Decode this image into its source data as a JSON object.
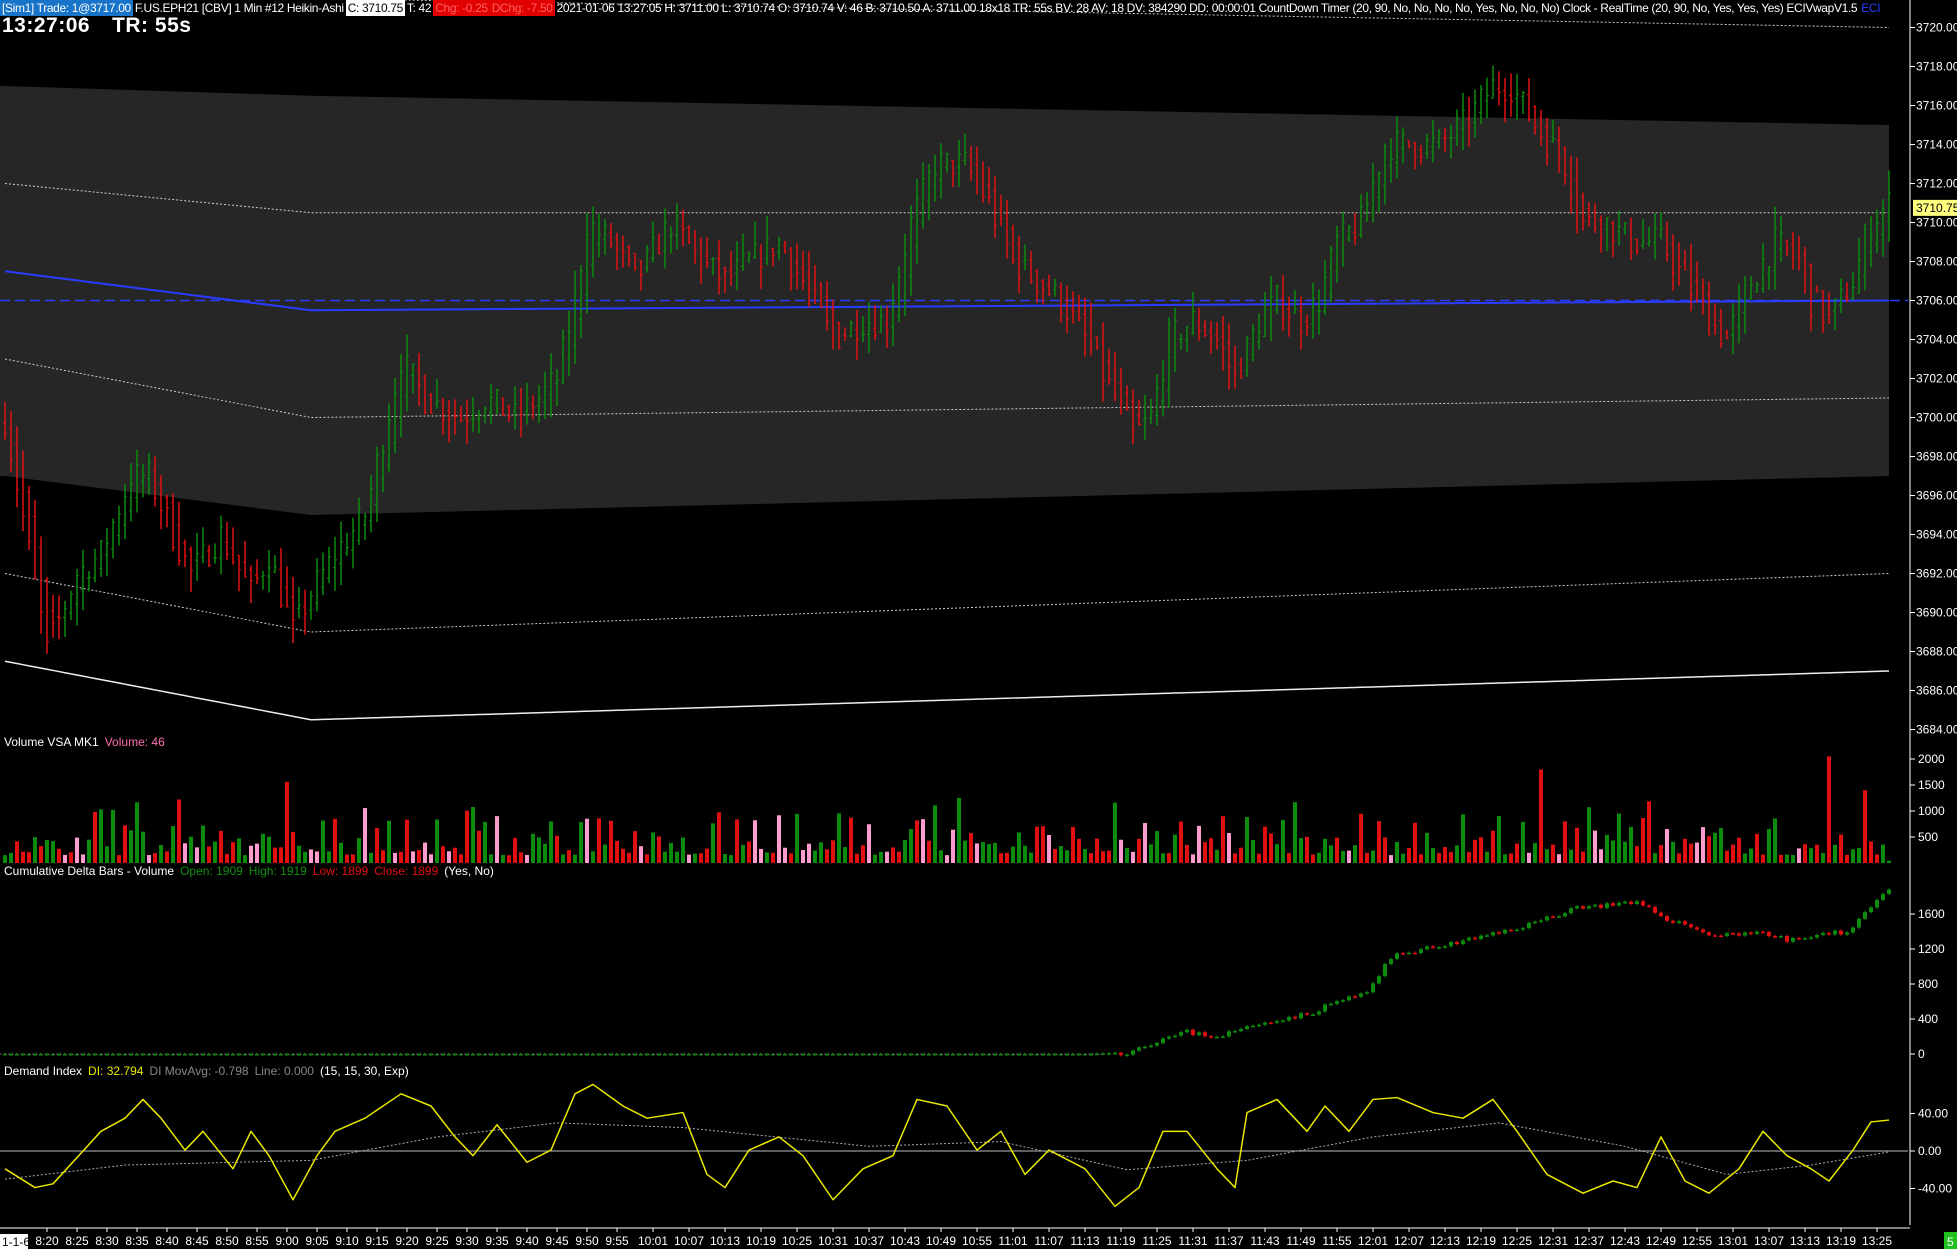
{
  "header": {
    "account": "[Sim1]  Trade: 1@3717.00",
    "instrument": "F.US.EPH21 [CBV]  1 Min   #12 Heikin-Ashi",
    "close": "C: 3710.75",
    "ticks": "T: 42",
    "chg": "Chg: -0.25",
    "dchg": "DChg: -7.50",
    "details": "2021-01-06 13:27:05 H: 3711.00 L: 3710.74 O: 3710.74 V: 46 B: 3710.50 A: 3711.00 18x18 TR: 55s BV: 28 AV: 18 DV: 384290 DD: 00:00:01 CountDown Timer   (20, 90, No, No, No, No, Yes, No, No, No)  Clock - RealTime   (20, 90, No, Yes, Yes, Yes)  ECIVwapV1.5",
    "trailing": "ECI",
    "clock_time": "13:27:06",
    "clock_tr": "TR: 55s"
  },
  "panels": {
    "volume": {
      "title": "Volume VSA MK1",
      "value": "Volume: 46"
    },
    "delta": {
      "title": "Cumulative Delta Bars - Volume",
      "open": "Open: 1909",
      "high": "High: 1919",
      "low": "Low: 1899",
      "close": "Close: 1899",
      "params": "(Yes, No)"
    },
    "demand": {
      "title": "Demand Index",
      "di": "DI: 32.794",
      "ma": "DI MovAvg: -0.798",
      "line": "Line: 0.000",
      "params": "(15, 15, 30, Exp)"
    }
  },
  "time_axis": {
    "date_label": "1-1-6",
    "corner_badge": "5",
    "labels": [
      "8:20",
      "8:25",
      "8:30",
      "8:35",
      "8:40",
      "8:45",
      "8:50",
      "8:55",
      "9:00",
      "9:05",
      "9:10",
      "9:15",
      "9:20",
      "9:25",
      "9:30",
      "9:35",
      "9:40",
      "9:45",
      "9:50",
      "9:55",
      "10:01",
      "10:07",
      "10:13",
      "10:19",
      "10:25",
      "10:31",
      "10:37",
      "10:43",
      "10:49",
      "10:55",
      "11:01",
      "11:07",
      "11:13",
      "11:19",
      "11:25",
      "11:31",
      "11:37",
      "11:43",
      "11:49",
      "11:55",
      "12:01",
      "12:07",
      "12:13",
      "12:19",
      "12:25",
      "12:31",
      "12:37",
      "12:43",
      "12:49",
      "12:55",
      "13:01",
      "13:07",
      "13:13",
      "13:19",
      "13:25"
    ]
  },
  "colors": {
    "up": "#0c8c0c",
    "down": "#e01010",
    "pink": "#ff9ccf",
    "vwap": "#2a3cff",
    "band_fill": "#262626",
    "demand": "#e8e800",
    "last_price_bg": "#ffff80"
  },
  "chart_data": [
    {
      "type": "ohlc",
      "name": "price",
      "bar_style": "Heikin-Ashi",
      "interval": "1 Min",
      "x_start": "8:13",
      "x_end": "13:27",
      "ylim": [
        3684,
        3720
      ],
      "y_ticks": [
        "3684.00",
        "3686.00",
        "3688.00",
        "3690.00",
        "3692.00",
        "3694.00",
        "3696.00",
        "3698.00",
        "3700.00",
        "3702.00",
        "3704.00",
        "3706.00",
        "3708.00",
        "3710.00",
        "3712.00",
        "3714.00",
        "3716.00",
        "3718.00",
        "3720.00"
      ],
      "last_price": "3710.75",
      "close_path": [
        [
          "8:13",
          3700
        ],
        [
          "8:20",
          3688
        ],
        [
          "8:25",
          3692
        ],
        [
          "8:29",
          3693
        ],
        [
          "8:34",
          3697
        ],
        [
          "8:37",
          3697
        ],
        [
          "8:41",
          3694
        ],
        [
          "8:44",
          3692
        ],
        [
          "8:49",
          3694
        ],
        [
          "8:54",
          3691
        ],
        [
          "8:57",
          3693
        ],
        [
          "9:01",
          3689
        ],
        [
          "9:04",
          3691
        ],
        [
          "9:08",
          3693
        ],
        [
          "9:13",
          3695
        ],
        [
          "9:16",
          3699
        ],
        [
          "9:19",
          3703
        ],
        [
          "9:23",
          3701
        ],
        [
          "9:29",
          3700
        ],
        [
          "9:33",
          3701
        ],
        [
          "9:38",
          3700
        ],
        [
          "9:42",
          3701
        ],
        [
          "9:45",
          3702
        ],
        [
          "9:48",
          3706
        ],
        [
          "9:50",
          3710
        ],
        [
          "9:54",
          3709
        ],
        [
          "9:58",
          3707
        ],
        [
          "10:04",
          3710
        ],
        [
          "10:09",
          3708
        ],
        [
          "10:13",
          3707
        ],
        [
          "10:17",
          3708
        ],
        [
          "10:22",
          3709
        ],
        [
          "10:26",
          3707
        ],
        [
          "10:31",
          3704
        ],
        [
          "10:36",
          3705
        ],
        [
          "10:40",
          3705
        ],
        [
          "10:44",
          3710
        ],
        [
          "10:48",
          3713
        ],
        [
          "10:53",
          3713
        ],
        [
          "10:57",
          3711
        ],
        [
          "11:01",
          3708
        ],
        [
          "11:05",
          3707
        ],
        [
          "11:09",
          3706
        ],
        [
          "11:13",
          3704
        ],
        [
          "11:18",
          3701
        ],
        [
          "11:21",
          3699
        ],
        [
          "11:24",
          3700
        ],
        [
          "11:27",
          3704
        ],
        [
          "11:31",
          3705
        ],
        [
          "11:35",
          3704
        ],
        [
          "11:38",
          3702
        ],
        [
          "11:42",
          3705
        ],
        [
          "11:45",
          3706
        ],
        [
          "11:49",
          3705
        ],
        [
          "11:52",
          3706
        ],
        [
          "11:55",
          3709
        ],
        [
          "11:59",
          3710
        ],
        [
          "12:03",
          3714
        ],
        [
          "12:08",
          3714
        ],
        [
          "12:12",
          3714
        ],
        [
          "12:16",
          3715
        ],
        [
          "12:21",
          3717
        ],
        [
          "12:24",
          3717
        ],
        [
          "12:28",
          3715
        ],
        [
          "12:33",
          3713
        ],
        [
          "12:36",
          3710
        ],
        [
          "12:40",
          3710
        ],
        [
          "12:44",
          3709
        ],
        [
          "12:49",
          3709
        ],
        [
          "12:53",
          3707
        ],
        [
          "12:57",
          3705
        ],
        [
          "13:00",
          3704
        ],
        [
          "13:04",
          3707
        ],
        [
          "13:08",
          3709
        ],
        [
          "13:12",
          3708
        ],
        [
          "13:14",
          3706
        ],
        [
          "13:17",
          3705
        ],
        [
          "13:21",
          3707
        ],
        [
          "13:24",
          3710
        ],
        [
          "13:27",
          3711
        ]
      ],
      "bands": {
        "shade_upper": [
          [
            "8:13",
            3717
          ],
          [
            "9:04",
            3716.5
          ],
          [
            "13:27",
            3715
          ]
        ],
        "shade_lower": [
          [
            "8:13",
            3697
          ],
          [
            "9:04",
            3695
          ],
          [
            "13:27",
            3697
          ]
        ],
        "dotted": [
          [
            [
              "8:13",
              3722
            ],
            [
              "9:04",
              3721.5
            ],
            [
              "13:27",
              3720
            ]
          ],
          [
            [
              "8:13",
              3712
            ],
            [
              "9:04",
              3710.5
            ],
            [
              "13:27",
              3710.5
            ]
          ],
          [
            [
              "8:13",
              3703
            ],
            [
              "9:04",
              3700
            ],
            [
              "13:27",
              3701
            ]
          ],
          [
            [
              "8:13",
              3692
            ],
            [
              "9:04",
              3689
            ],
            [
              "13:27",
              3692
            ]
          ]
        ],
        "solid_white": [
          [
            "8:13",
            3687.5
          ],
          [
            "9:04",
            3684.5
          ],
          [
            "13:27",
            3687
          ]
        ],
        "vwap": [
          [
            "8:13",
            3707.5
          ],
          [
            "9:04",
            3705.5
          ],
          [
            "13:27",
            3706
          ]
        ],
        "vwap_dashed": 3706
      }
    },
    {
      "type": "bar",
      "name": "Volume VSA MK1",
      "ylim": [
        0,
        2200
      ],
      "y_ticks": [
        "500",
        "1000",
        "1500",
        "2000"
      ],
      "last_value": 46,
      "peaks": [
        [
          "9:00",
          1560
        ],
        [
          "10:52",
          1250
        ],
        [
          "12:29",
          1800
        ],
        [
          "13:17",
          2050
        ],
        [
          "13:23",
          1400
        ]
      ]
    },
    {
      "type": "ohlc",
      "name": "Cumulative Delta Bars - Volume",
      "ylim": [
        -100,
        1900
      ],
      "y_ticks": [
        "0",
        "400",
        "800",
        "1200",
        "1600"
      ],
      "close_path": [
        [
          "8:13",
          0
        ],
        [
          "11:14",
          0
        ],
        [
          "11:20",
          20
        ],
        [
          "11:25",
          150
        ],
        [
          "11:30",
          250
        ],
        [
          "11:35",
          200
        ],
        [
          "11:40",
          300
        ],
        [
          "11:45",
          400
        ],
        [
          "11:50",
          450
        ],
        [
          "11:55",
          600
        ],
        [
          "12:00",
          700
        ],
        [
          "12:03",
          1000
        ],
        [
          "12:05",
          1150
        ],
        [
          "12:10",
          1200
        ],
        [
          "12:20",
          1350
        ],
        [
          "12:28",
          1500
        ],
        [
          "12:35",
          1680
        ],
        [
          "12:45",
          1720
        ],
        [
          "12:50",
          1550
        ],
        [
          "12:58",
          1350
        ],
        [
          "13:05",
          1400
        ],
        [
          "13:10",
          1300
        ],
        [
          "13:20",
          1400
        ],
        [
          "13:27",
          1900
        ]
      ]
    },
    {
      "type": "line",
      "name": "Demand Index",
      "ylim": [
        -65,
        75
      ],
      "y_ticks": [
        "40.00",
        "0.00",
        "-40.00"
      ],
      "zero_line": 0,
      "di": [
        [
          "8:13",
          -19
        ],
        [
          "8:18",
          -39
        ],
        [
          "8:21",
          -35
        ],
        [
          "8:29",
          21
        ],
        [
          "8:33",
          35
        ],
        [
          "8:36",
          55
        ],
        [
          "8:39",
          35
        ],
        [
          "8:43",
          1
        ],
        [
          "8:46",
          21
        ],
        [
          "8:51",
          -19
        ],
        [
          "8:54",
          21
        ],
        [
          "8:57",
          -5
        ],
        [
          "9:01",
          -52
        ],
        [
          "9:05",
          -5
        ],
        [
          "9:08",
          21
        ],
        [
          "9:13",
          35
        ],
        [
          "9:19",
          61
        ],
        [
          "9:24",
          48
        ],
        [
          "9:28",
          15
        ],
        [
          "9:31",
          -5
        ],
        [
          "9:35",
          28
        ],
        [
          "9:40",
          -12
        ],
        [
          "9:44",
          1
        ],
        [
          "9:48",
          61
        ],
        [
          "9:51",
          71
        ],
        [
          "9:56",
          48
        ],
        [
          "10:00",
          35
        ],
        [
          "10:06",
          41
        ],
        [
          "10:10",
          -25
        ],
        [
          "10:13",
          -39
        ],
        [
          "10:17",
          1
        ],
        [
          "10:22",
          15
        ],
        [
          "10:26",
          -5
        ],
        [
          "10:31",
          -52
        ],
        [
          "10:36",
          -19
        ],
        [
          "10:41",
          -5
        ],
        [
          "10:45",
          55
        ],
        [
          "10:50",
          48
        ],
        [
          "10:55",
          1
        ],
        [
          "10:59",
          21
        ],
        [
          "11:03",
          -25
        ],
        [
          "11:07",
          1
        ],
        [
          "11:13",
          -19
        ],
        [
          "11:18",
          -59
        ],
        [
          "11:22",
          -39
        ],
        [
          "11:26",
          21
        ],
        [
          "11:30",
          21
        ],
        [
          "11:35",
          -19
        ],
        [
          "11:38",
          -39
        ],
        [
          "11:40",
          41
        ],
        [
          "11:45",
          55
        ],
        [
          "11:50",
          21
        ],
        [
          "11:53",
          48
        ],
        [
          "11:57",
          21
        ],
        [
          "12:01",
          55
        ],
        [
          "12:05",
          57
        ],
        [
          "12:11",
          41
        ],
        [
          "12:16",
          35
        ],
        [
          "12:21",
          55
        ],
        [
          "12:25",
          21
        ],
        [
          "12:30",
          -25
        ],
        [
          "12:36",
          -45
        ],
        [
          "12:41",
          -32
        ],
        [
          "12:45",
          -39
        ],
        [
          "12:49",
          15
        ],
        [
          "12:53",
          -32
        ],
        [
          "12:57",
          -45
        ],
        [
          "13:02",
          -19
        ],
        [
          "13:06",
          21
        ],
        [
          "13:10",
          -5
        ],
        [
          "13:14",
          -19
        ],
        [
          "13:17",
          -32
        ],
        [
          "13:21",
          1
        ],
        [
          "13:24",
          31
        ],
        [
          "13:27",
          33
        ]
      ],
      "di_movavg": [
        [
          "8:13",
          -30
        ],
        [
          "8:33",
          -15
        ],
        [
          "9:04",
          -10
        ],
        [
          "9:25",
          15
        ],
        [
          "9:45",
          30
        ],
        [
          "10:06",
          25
        ],
        [
          "10:37",
          5
        ],
        [
          "10:59",
          10
        ],
        [
          "11:20",
          -20
        ],
        [
          "11:40",
          -10
        ],
        [
          "12:01",
          15
        ],
        [
          "12:22",
          30
        ],
        [
          "12:43",
          5
        ],
        [
          "13:00",
          -25
        ],
        [
          "13:14",
          -15
        ],
        [
          "13:27",
          -1
        ]
      ]
    }
  ]
}
